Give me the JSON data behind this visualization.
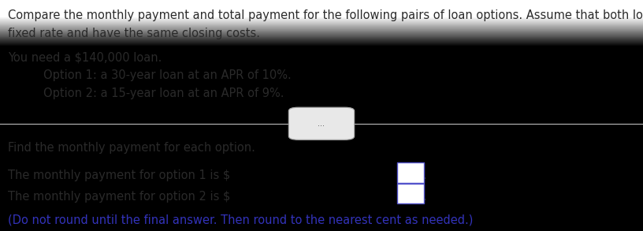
{
  "background_color_top": "#d8d8d8",
  "background_color_bottom": "#f0f0f0",
  "text_color_black": "#2a2a2a",
  "text_color_blue": "#3333bb",
  "line1": "Compare the monthly payment and total payment for the following pairs of loan options. Assume that both loans are",
  "line2": "fixed rate and have the same closing costs.",
  "line3": "You need a $140,000 loan.",
  "line4": "Option 1: a 30-year loan at an APR of 10%.",
  "line5": "Option 2: a 15-year loan at an APR of 9%.",
  "separator_dots": "...",
  "line6": "Find the monthly payment for each option.",
  "line7_prefix": "The monthly payment for option 1 is $",
  "line7_suffix": ".",
  "line8_prefix": "The monthly payment for option 2 is $",
  "line8_suffix": ".",
  "line9": "(Do not round until the final answer. Then round to the nearest cent as needed.)",
  "font_size_main": 10.5,
  "line_sep_color": "#bbbbbb",
  "box_edge_color": "#5555cc",
  "indent": 0.068
}
